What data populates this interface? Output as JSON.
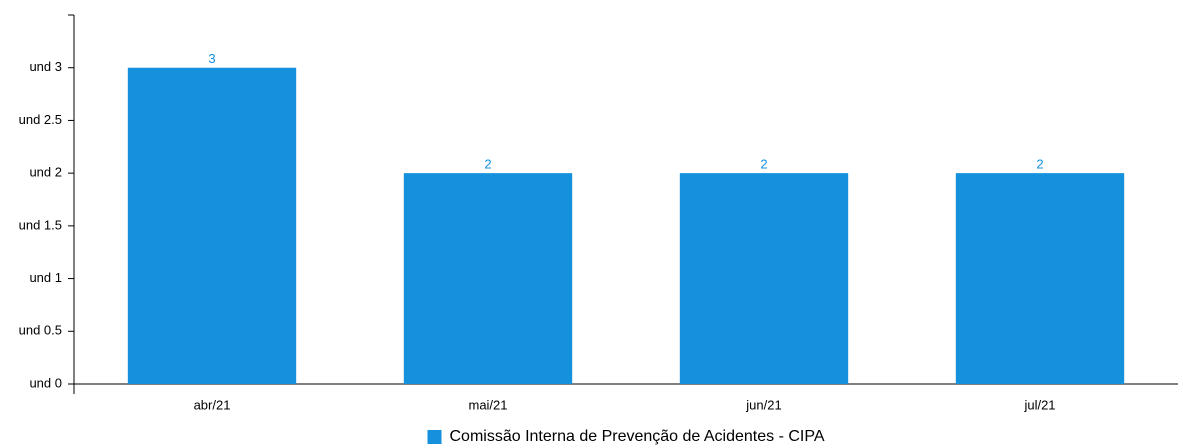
{
  "chart_data": {
    "type": "bar",
    "categories": [
      "abr/21",
      "mai/21",
      "jun/21",
      "jul/21"
    ],
    "series": [
      {
        "name": "Comissão Interna de Prevenção de Acidentes - CIPA",
        "color": "#1490dd",
        "values": [
          3,
          2,
          2,
          2
        ]
      }
    ],
    "ylim": [
      0,
      3.5
    ],
    "yticks": [
      {
        "value": 0,
        "label": "und 0"
      },
      {
        "value": 0.5,
        "label": "und 0.5"
      },
      {
        "value": 1,
        "label": "und 1"
      },
      {
        "value": 1.5,
        "label": "und 1.5"
      },
      {
        "value": 2,
        "label": "und 2"
      },
      {
        "value": 2.5,
        "label": "und 2.5"
      },
      {
        "value": 3,
        "label": "und 3"
      }
    ],
    "grid": false,
    "legend": "bottom"
  }
}
